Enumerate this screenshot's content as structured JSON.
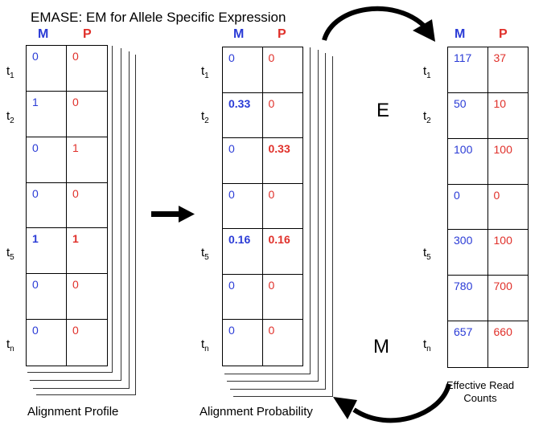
{
  "title": "EMASE: EM for Allele Specific Expression",
  "headers": {
    "m": "M",
    "p": "P"
  },
  "row_labels": {
    "t1": {
      "base": "t",
      "sub": "1"
    },
    "t2": {
      "base": "t",
      "sub": "2"
    },
    "t5": {
      "base": "t",
      "sub": "5"
    },
    "tn": {
      "base": "t",
      "sub": "n"
    }
  },
  "tables": [
    {
      "caption": "Alignment Profile",
      "rows": [
        {
          "m": "0",
          "p": "0",
          "bold": false
        },
        {
          "m": "1",
          "p": "0",
          "bold": false
        },
        {
          "m": "0",
          "p": "1",
          "bold": false
        },
        {
          "m": "0",
          "p": "0",
          "bold": false
        },
        {
          "m": "1",
          "p": "1",
          "bold": true
        },
        {
          "m": "0",
          "p": "0",
          "bold": false
        },
        {
          "m": "0",
          "p": "0",
          "bold": false
        }
      ]
    },
    {
      "caption": "Alignment Probability",
      "rows": [
        {
          "m": "0",
          "p": "0",
          "mbold": false,
          "pbold": false
        },
        {
          "m": "0.33",
          "p": "0",
          "mbold": true,
          "pbold": false
        },
        {
          "m": "0",
          "p": "0.33",
          "mbold": false,
          "pbold": true
        },
        {
          "m": "0",
          "p": "0",
          "mbold": false,
          "pbold": false
        },
        {
          "m": "0.16",
          "p": "0.16",
          "mbold": true,
          "pbold": true
        },
        {
          "m": "0",
          "p": "0",
          "mbold": false,
          "pbold": false
        },
        {
          "m": "0",
          "p": "0",
          "mbold": false,
          "pbold": false
        }
      ]
    },
    {
      "caption": "Effective Read\nCounts",
      "rows": [
        {
          "m": "117",
          "p": "37"
        },
        {
          "m": "50",
          "p": "10"
        },
        {
          "m": "100",
          "p": "100"
        },
        {
          "m": "0",
          "p": "0"
        },
        {
          "m": "300",
          "p": "100"
        },
        {
          "m": "780",
          "p": "700"
        },
        {
          "m": "657",
          "p": "660"
        }
      ]
    }
  ],
  "steps": {
    "e": "E",
    "m": "M"
  }
}
